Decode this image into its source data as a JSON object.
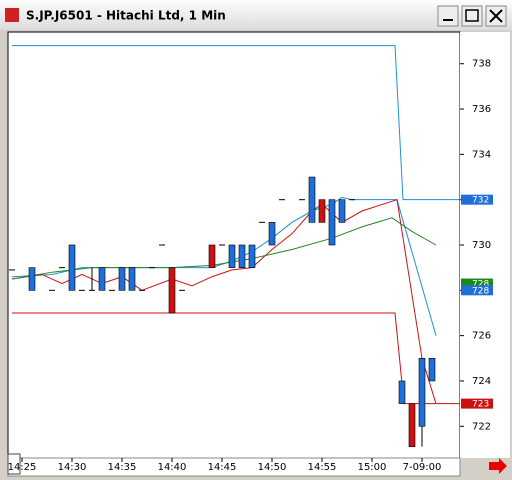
{
  "chart_data": {
    "type": "candlestick",
    "title": "S.JP.J6501 - Hitachi Ltd, 1 Min",
    "xlim": [
      24,
      68.8
    ],
    "xticks": [
      {
        "value": 25,
        "label": "14:25"
      },
      {
        "value": 30,
        "label": "14:30"
      },
      {
        "value": 35,
        "label": "14:35"
      },
      {
        "value": 40,
        "label": "14:40"
      },
      {
        "value": 45,
        "label": "14:45"
      },
      {
        "value": 50,
        "label": "14:50"
      },
      {
        "value": 55,
        "label": "14:55"
      },
      {
        "value": 60,
        "label": "15:00"
      },
      {
        "value": 65,
        "label": "7-09:00"
      }
    ],
    "ylim": [
      720.6,
      739.4
    ],
    "yticks": [
      722,
      724,
      726,
      728,
      730,
      732,
      734,
      736,
      738
    ],
    "up_color": "#1e6fd9",
    "down_color": "#cc1111",
    "candles": {
      "x": [
        24,
        26,
        28,
        29,
        30,
        31,
        32,
        33,
        34,
        35,
        36,
        37,
        38,
        39,
        40,
        41,
        44,
        45,
        46,
        47,
        48,
        49,
        50,
        51,
        53,
        54,
        55,
        56,
        57,
        58,
        63,
        64,
        65,
        66
      ],
      "open": [
        728.9,
        728,
        728,
        729,
        728,
        728,
        728,
        728,
        728,
        728,
        728,
        728,
        729,
        730,
        729,
        728,
        730,
        730,
        729,
        729,
        729,
        731,
        730,
        732,
        732,
        731,
        732,
        730,
        731,
        732,
        723,
        723,
        722,
        724
      ],
      "high": [
        728.9,
        729,
        728,
        729,
        730,
        728,
        729,
        729,
        728,
        729,
        729,
        728,
        729,
        730,
        729,
        728,
        730,
        730,
        730,
        730,
        730,
        731,
        731,
        732,
        732,
        733,
        732,
        732,
        732,
        732,
        724,
        723,
        725,
        725
      ],
      "low": [
        728.9,
        728,
        728,
        729,
        728,
        728,
        728,
        728,
        728,
        728,
        728,
        728,
        729,
        730,
        727,
        728,
        729,
        730,
        729,
        729,
        729,
        731,
        730,
        732,
        732,
        731,
        731,
        730,
        731,
        732,
        723,
        721.1,
        721.1,
        724
      ],
      "close": [
        728.9,
        729,
        728,
        729,
        730,
        728,
        728,
        729,
        728,
        729,
        729,
        728,
        729,
        730,
        727,
        728,
        729,
        730,
        730,
        730,
        730,
        731,
        731,
        732,
        732,
        733,
        731,
        732,
        732,
        732,
        724,
        721.1,
        725,
        725
      ]
    },
    "series": [
      {
        "color": "#1e8fd9",
        "x": [
          24,
          62.3,
          63.1,
          68.8
        ],
        "values": [
          738.8,
          738.8,
          732,
          732
        ]
      },
      {
        "color": "#cc1111",
        "x": [
          24,
          62.3,
          63.2,
          68.8
        ],
        "values": [
          727,
          727,
          723,
          723
        ]
      },
      {
        "color": "#1e8fd9",
        "x": [
          24,
          28,
          31,
          35,
          40,
          44,
          46,
          48,
          50,
          52,
          54,
          56,
          57,
          58,
          61,
          62.5,
          66.4
        ],
        "values": [
          728.6,
          728.7,
          729,
          729,
          729,
          729,
          729.3,
          729.7,
          730.3,
          731,
          731.5,
          731.8,
          732.1,
          732,
          732,
          732,
          726
        ]
      },
      {
        "color": "#cc1111",
        "x": [
          24,
          27,
          29,
          31,
          33,
          35,
          37,
          40,
          42,
          44,
          46,
          48,
          50,
          52,
          54,
          55,
          57,
          59,
          62.5,
          65,
          66.4
        ],
        "values": [
          728.5,
          728.7,
          728.3,
          728.7,
          728.3,
          728.6,
          728,
          728.5,
          728.2,
          728.6,
          728.9,
          729,
          729.8,
          730.5,
          731.5,
          731.8,
          731,
          731.5,
          732,
          725,
          723
        ]
      },
      {
        "color": "#228822",
        "x": [
          24,
          28,
          32,
          40,
          44,
          48,
          52,
          56,
          59,
          62,
          64,
          66.4
        ],
        "values": [
          728.5,
          728.8,
          729,
          729,
          729.1,
          729.4,
          729.8,
          730.3,
          730.8,
          731.2,
          730.6,
          730
        ]
      }
    ],
    "price_labels": [
      {
        "value": 732,
        "color": "#1e6fd9"
      },
      {
        "value": 728.3,
        "color": "#1a8a1a"
      },
      {
        "value": 728,
        "color": "#1e6fd9"
      },
      {
        "value": 723,
        "color": "#cc1111"
      }
    ]
  }
}
